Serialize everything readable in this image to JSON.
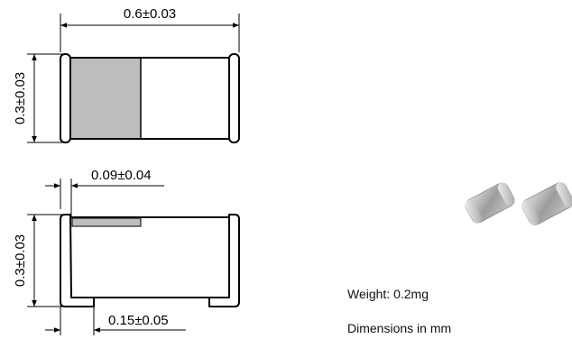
{
  "top_view": {
    "length_label": "0.6±0.03",
    "height_label": "0.3±0.03"
  },
  "side_view": {
    "terminal_label": "0.09±0.04",
    "height_label": "0.3±0.03",
    "foot_label": "0.15±0.05"
  },
  "notes": {
    "weight": "Weight: 0.2mg",
    "units": "Dimensions in mm"
  },
  "colors": {
    "line": "#000000",
    "fill_gray": "#bdbdbd"
  }
}
